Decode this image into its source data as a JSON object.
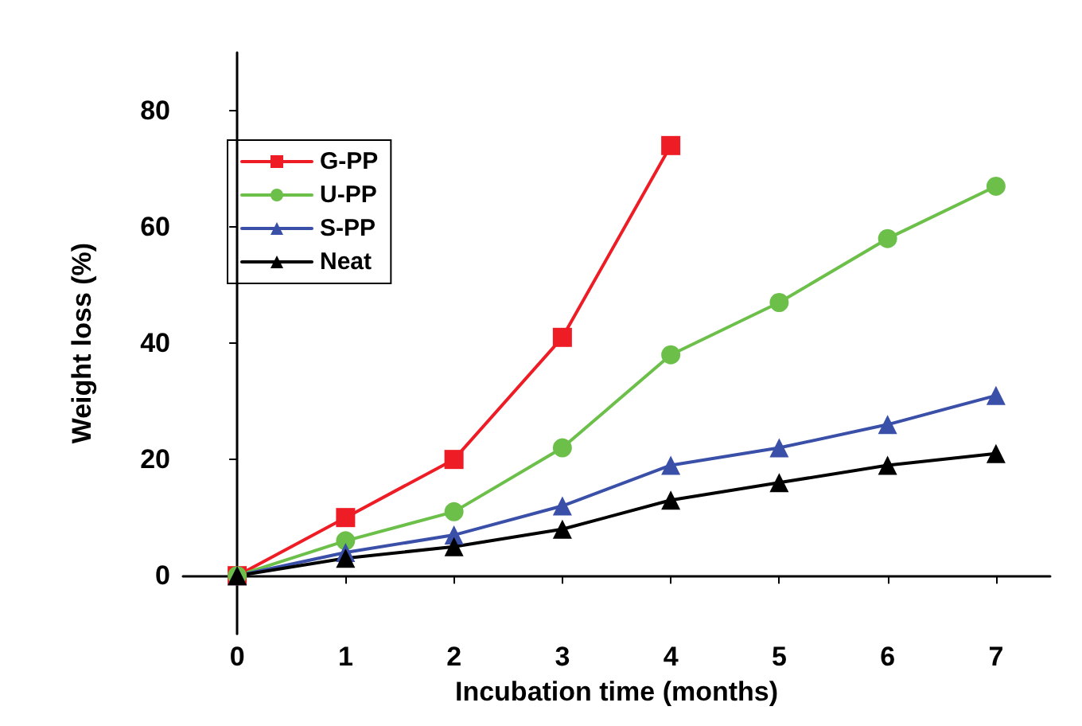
{
  "chart_data": {
    "type": "line",
    "xlabel": "Incubation time (months)",
    "ylabel": "Weight loss (%)",
    "x": [
      0,
      1,
      2,
      3,
      4,
      5,
      6,
      7
    ],
    "series": [
      {
        "name": "G-PP",
        "color": "#ee1c25",
        "marker": "square",
        "values": [
          0,
          10,
          20,
          41,
          74,
          null,
          null,
          null
        ]
      },
      {
        "name": "U-PP",
        "color": "#6cc04a",
        "marker": "circle",
        "values": [
          0,
          6,
          11,
          22,
          38,
          47,
          58,
          67
        ]
      },
      {
        "name": "S-PP",
        "color": "#3a4fa8",
        "marker": "triangle",
        "values": [
          0,
          4,
          7,
          12,
          19,
          22,
          26,
          31
        ]
      },
      {
        "name": "Neat",
        "color": "#000000",
        "marker": "triangle",
        "values": [
          0,
          3,
          5,
          8,
          13,
          16,
          19,
          21
        ]
      }
    ],
    "xlim": [
      -0.5,
      7.5
    ],
    "xticks": [
      0,
      1,
      2,
      3,
      4,
      5,
      6,
      7
    ],
    "ylim": [
      -10,
      90
    ],
    "yticks": [
      0,
      20,
      40,
      60,
      80
    ],
    "grid": false,
    "legend": "top left",
    "line_style": "solid"
  }
}
